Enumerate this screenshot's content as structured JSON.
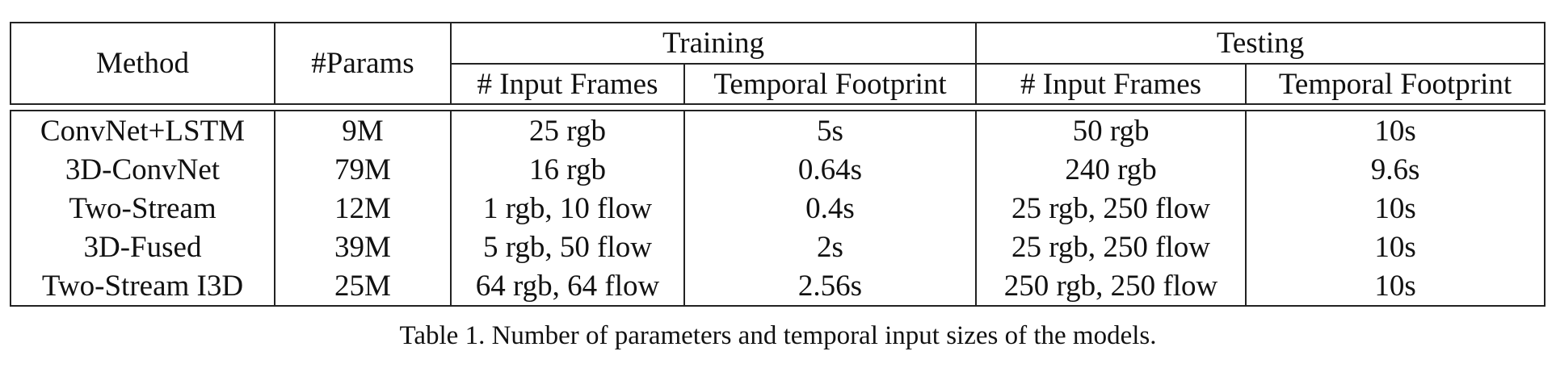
{
  "table": {
    "headers": {
      "method": "Method",
      "params": "#Params",
      "training": "Training",
      "testing": "Testing",
      "input_frames": "# Input Frames",
      "temporal_footprint": "Temporal Footprint"
    },
    "rows": [
      {
        "method": "ConvNet+LSTM",
        "params": "9M",
        "train_frames": "25 rgb",
        "train_footprint": "5s",
        "test_frames": "50 rgb",
        "test_footprint": "10s"
      },
      {
        "method": "3D-ConvNet",
        "params": "79M",
        "train_frames": "16 rgb",
        "train_footprint": "0.64s",
        "test_frames": "240 rgb",
        "test_footprint": "9.6s"
      },
      {
        "method": "Two-Stream",
        "params": "12M",
        "train_frames": "1 rgb, 10 flow",
        "train_footprint": "0.4s",
        "test_frames": "25 rgb, 250 flow",
        "test_footprint": "10s"
      },
      {
        "method": "3D-Fused",
        "params": "39M",
        "train_frames": "5 rgb, 50 flow",
        "train_footprint": "2s",
        "test_frames": "25 rgb, 250 flow",
        "test_footprint": "10s"
      },
      {
        "method": "Two-Stream I3D",
        "params": "25M",
        "train_frames": "64 rgb, 64 flow",
        "train_footprint": "2.56s",
        "test_frames": "250 rgb, 250 flow",
        "test_footprint": "10s"
      }
    ]
  },
  "caption": "Table 1. Number of parameters and temporal input sizes of the models."
}
